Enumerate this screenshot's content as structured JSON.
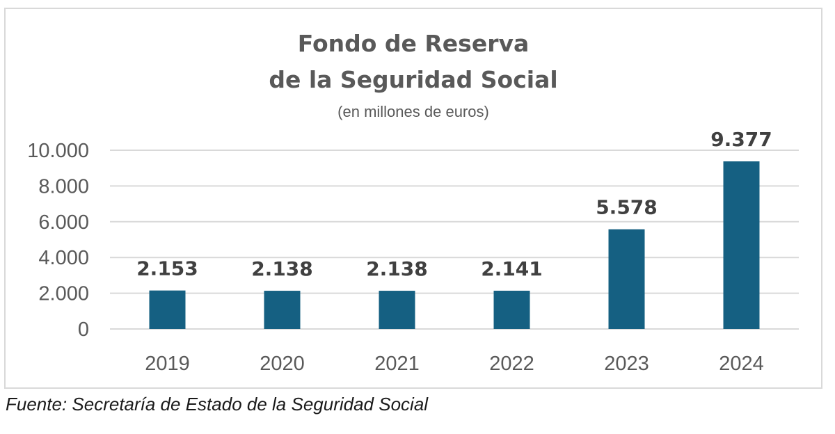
{
  "chart_data": {
    "type": "bar",
    "title": [
      "Fondo de Reserva",
      "de la Seguridad Social"
    ],
    "subtitle": "(en millones de euros)",
    "categories": [
      "2019",
      "2020",
      "2021",
      "2022",
      "2023",
      "2024"
    ],
    "values": [
      2153,
      2138,
      2138,
      2141,
      5578,
      9377
    ],
    "value_labels": [
      "2.153",
      "2.138",
      "2.138",
      "2.141",
      "5.578",
      "9.377"
    ],
    "yticks": [
      0,
      2000,
      4000,
      6000,
      8000,
      10000
    ],
    "ytick_labels": [
      "0",
      "2.000",
      "4.000",
      "6.000",
      "8.000",
      "10.000"
    ],
    "ylim": [
      0,
      10000
    ],
    "grid": true,
    "legend": "none",
    "bar_color": "#156082"
  },
  "source": "Fuente: Secretaría de Estado de la Seguridad Social"
}
